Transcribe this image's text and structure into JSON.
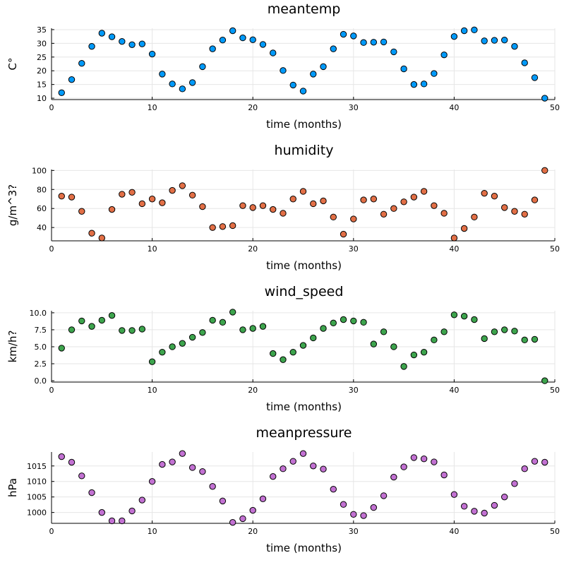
{
  "chart_data": [
    {
      "type": "scatter",
      "title": "meantemp",
      "xlabel": "time (months)",
      "ylabel": "C°",
      "color": "#009AFA",
      "xlim": [
        0,
        50
      ],
      "ylim": [
        9.5,
        35.5
      ],
      "xticks": [
        0,
        10,
        20,
        30,
        40,
        50
      ],
      "yticks": [
        10,
        15,
        20,
        25,
        30,
        35
      ],
      "x": [
        1,
        2,
        3,
        4,
        5,
        6,
        7,
        8,
        9,
        10,
        11,
        12,
        13,
        14,
        15,
        16,
        17,
        18,
        19,
        20,
        21,
        22,
        23,
        24,
        25,
        26,
        27,
        28,
        29,
        30,
        31,
        32,
        33,
        34,
        35,
        36,
        37,
        38,
        39,
        40,
        41,
        42,
        43,
        44,
        45,
        46,
        47,
        48,
        49
      ],
      "y": [
        12.0,
        16.8,
        22.7,
        28.9,
        33.7,
        32.4,
        30.7,
        29.5,
        29.8,
        26.1,
        18.8,
        15.2,
        13.4,
        15.7,
        21.5,
        28.0,
        31.2,
        34.6,
        32.0,
        31.3,
        29.6,
        26.5,
        20.1,
        14.8,
        12.6,
        18.8,
        21.5,
        28.0,
        33.3,
        32.7,
        30.3,
        30.4,
        30.5,
        26.9,
        20.7,
        15.0,
        15.2,
        19.0,
        25.8,
        32.5,
        34.6,
        34.9,
        30.9,
        31.1,
        31.2,
        28.9,
        22.9,
        17.5,
        10.0
      ]
    },
    {
      "type": "scatter",
      "title": "humidity",
      "xlabel": "time (months)",
      "ylabel": "g/m^3?",
      "color": "#E26F46",
      "xlim": [
        0,
        50
      ],
      "ylim": [
        26,
        101
      ],
      "xticks": [
        0,
        10,
        20,
        30,
        40,
        50
      ],
      "yticks": [
        40,
        60,
        80,
        100
      ],
      "x": [
        1,
        2,
        3,
        4,
        5,
        6,
        7,
        8,
        9,
        10,
        11,
        12,
        13,
        14,
        15,
        16,
        17,
        18,
        19,
        20,
        21,
        22,
        23,
        24,
        25,
        26,
        27,
        28,
        29,
        30,
        31,
        32,
        33,
        34,
        35,
        36,
        37,
        38,
        39,
        40,
        41,
        42,
        43,
        44,
        45,
        46,
        47,
        48,
        49
      ],
      "y": [
        73,
        72,
        57,
        34,
        29,
        59,
        75,
        77,
        65,
        70,
        66,
        79,
        84,
        74,
        62,
        40,
        41,
        42,
        63,
        61,
        63,
        59,
        55,
        70,
        78,
        65,
        68,
        51,
        33,
        49,
        69,
        70,
        54,
        60,
        67,
        72,
        78,
        63,
        55,
        29,
        39,
        51,
        76,
        73,
        61,
        57,
        54,
        69,
        100
      ]
    },
    {
      "type": "scatter",
      "title": "wind_speed",
      "xlabel": "time (months)",
      "ylabel": "km/h?",
      "color": "#3DA44D",
      "xlim": [
        0,
        50
      ],
      "ylim": [
        -0.2,
        10.3
      ],
      "xticks": [
        0,
        10,
        20,
        30,
        40,
        50
      ],
      "yticks": [
        0.0,
        2.5,
        5.0,
        7.5,
        10.0
      ],
      "ytick_labels": [
        "0.0",
        "2.5",
        "5.0",
        "7.5",
        "10.0"
      ],
      "x": [
        1,
        2,
        3,
        4,
        5,
        6,
        7,
        8,
        9,
        10,
        11,
        12,
        13,
        14,
        15,
        16,
        17,
        18,
        19,
        20,
        21,
        22,
        23,
        24,
        25,
        26,
        27,
        28,
        29,
        30,
        31,
        32,
        33,
        34,
        35,
        36,
        37,
        38,
        39,
        40,
        41,
        42,
        43,
        44,
        45,
        46,
        47,
        48,
        49
      ],
      "y": [
        4.8,
        7.5,
        8.8,
        8.0,
        8.9,
        9.6,
        7.4,
        7.4,
        7.6,
        2.8,
        4.2,
        5.0,
        5.5,
        6.4,
        7.1,
        8.9,
        8.6,
        10.1,
        7.5,
        7.7,
        8.0,
        4.0,
        3.1,
        4.2,
        5.2,
        6.3,
        7.7,
        8.5,
        9.0,
        8.8,
        8.6,
        5.4,
        7.2,
        5.0,
        2.1,
        3.8,
        4.2,
        6.0,
        7.2,
        9.7,
        9.5,
        9.0,
        6.2,
        7.2,
        7.5,
        7.3,
        6.0,
        6.1,
        0.0
      ]
    },
    {
      "type": "scatter",
      "title": "meanpressure",
      "xlabel": "time (months)",
      "ylabel": "hPa",
      "color": "#C271D2",
      "xlim": [
        0,
        50
      ],
      "ylim": [
        996.5,
        1019.5
      ],
      "xticks": [
        0,
        10,
        20,
        30,
        40,
        50
      ],
      "yticks": [
        1000,
        1005,
        1010,
        1015
      ],
      "x": [
        1,
        2,
        3,
        4,
        5,
        6,
        7,
        8,
        9,
        10,
        11,
        12,
        13,
        14,
        15,
        16,
        17,
        18,
        19,
        20,
        21,
        22,
        23,
        24,
        25,
        26,
        27,
        28,
        29,
        30,
        31,
        32,
        33,
        34,
        35,
        36,
        37,
        38,
        39,
        40,
        41,
        42,
        43,
        44,
        45,
        46,
        47,
        48,
        49
      ],
      "y": [
        1018.0,
        1016.2,
        1011.8,
        1006.4,
        1000.0,
        997.3,
        997.3,
        1000.5,
        1004.0,
        1010.0,
        1015.5,
        1016.3,
        1019.0,
        1014.5,
        1013.2,
        1008.4,
        1003.7,
        996.8,
        998.0,
        1000.7,
        1004.4,
        1011.6,
        1014.1,
        1016.5,
        1019.0,
        1015.0,
        1014.0,
        1007.5,
        1002.6,
        999.4,
        999.0,
        1001.6,
        1005.4,
        1011.4,
        1014.7,
        1017.7,
        1017.3,
        1016.3,
        1012.1,
        1005.8,
        1002.0,
        1000.4,
        999.8,
        1002.3,
        1005.0,
        1009.3,
        1014.1,
        1016.5,
        1016.2
      ]
    }
  ]
}
